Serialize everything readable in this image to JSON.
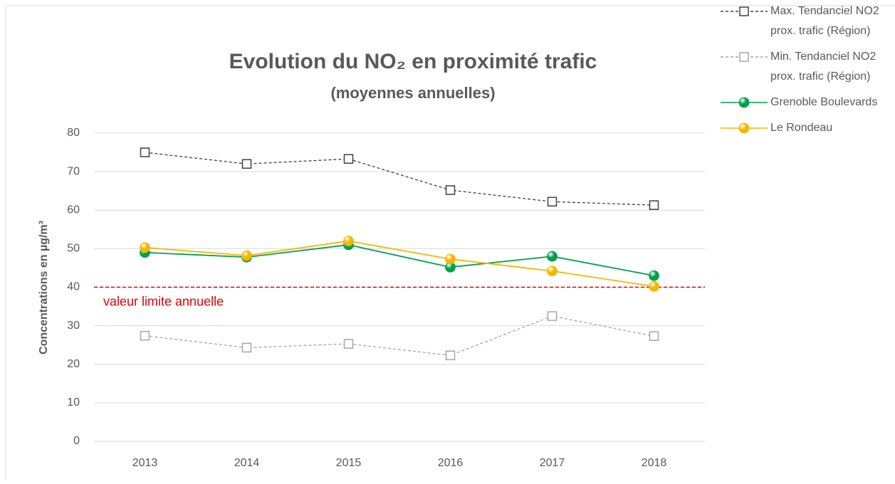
{
  "chart_data": {
    "type": "line",
    "title": "Evolution du NO₂ en proximité trafic",
    "subtitle": "(moyennes annuelles)",
    "y_label": "Concentrations en µg/m³",
    "categories": [
      "2013",
      "2014",
      "2015",
      "2016",
      "2017",
      "2018"
    ],
    "ylim": [
      0,
      80
    ],
    "yticks": [
      0,
      10,
      20,
      30,
      40,
      50,
      60,
      70,
      80
    ],
    "grid": true,
    "limit": {
      "value": 40,
      "label": "valeur limite annuelle",
      "color": "#e00000"
    },
    "legend": "right",
    "series": [
      {
        "name": "Max. Tendanciel NO2 prox. trafic (Région)",
        "color": "#404040",
        "marker": "square",
        "dashed": true,
        "values": [
          75,
          72,
          73.3,
          65.2,
          62.2,
          61.3
        ]
      },
      {
        "name": "Min. Tendanciel NO2 prox. trafic (Région)",
        "color": "#a6a6a6",
        "marker": "square",
        "dashed": true,
        "values": [
          27.4,
          24.3,
          25.3,
          22.3,
          32.5,
          27.3
        ]
      },
      {
        "name": "Grenoble Boulevards",
        "color": "#00a04a",
        "marker": "circle",
        "dashed": false,
        "values": [
          49,
          47.8,
          51,
          45.2,
          48,
          43
        ]
      },
      {
        "name": "Le Rondeau",
        "color": "#f2b800",
        "marker": "circle",
        "dashed": false,
        "values": [
          50.3,
          48.2,
          52,
          47.3,
          44.2,
          40.2
        ]
      }
    ]
  }
}
